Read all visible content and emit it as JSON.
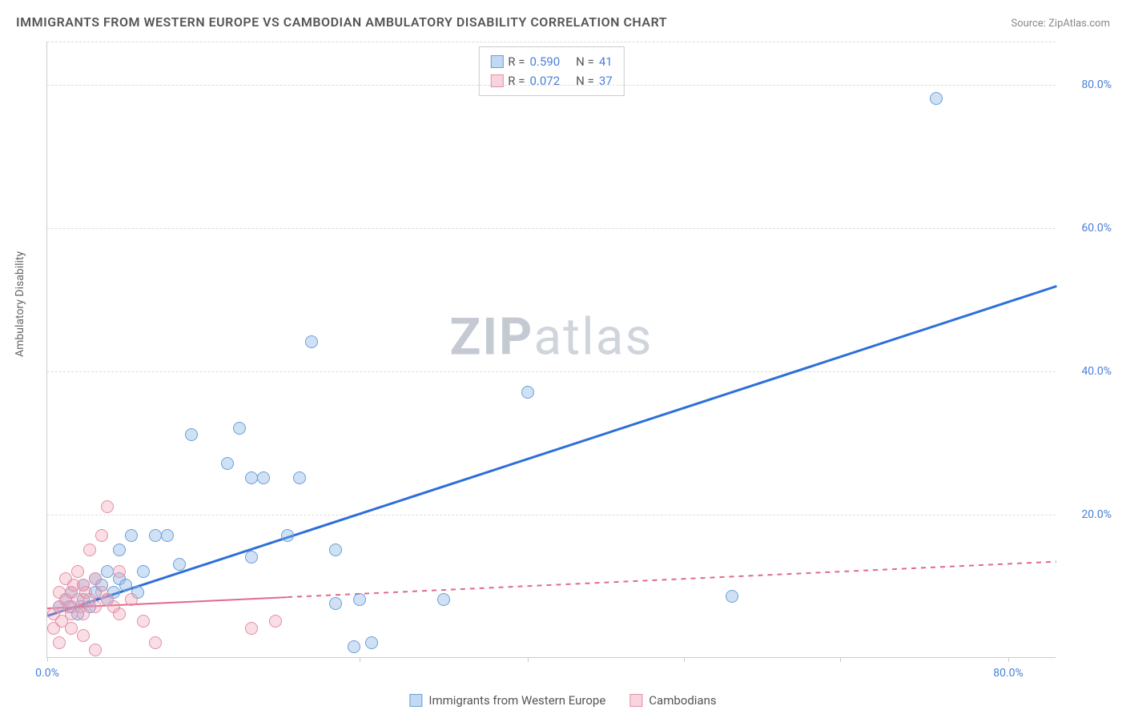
{
  "title": "IMMIGRANTS FROM WESTERN EUROPE VS CAMBODIAN AMBULATORY DISABILITY CORRELATION CHART",
  "source": "Source: ZipAtlas.com",
  "watermark": {
    "bold": "ZIP",
    "light": "atlas"
  },
  "y_axis_label": "Ambulatory Disability",
  "chart": {
    "type": "scatter",
    "xlim": [
      0,
      84
    ],
    "ylim": [
      0,
      86
    ],
    "x_ticks": [
      0,
      26,
      40,
      53,
      66,
      80
    ],
    "x_tick_labels": [
      "0.0%",
      "",
      "",
      "",
      "",
      "80.0%"
    ],
    "y_ticks": [
      20,
      40,
      60,
      80
    ],
    "y_tick_labels": [
      "20.0%",
      "40.0%",
      "60.0%",
      "80.0%"
    ],
    "background_color": "#ffffff",
    "grid_color": "#dddddd",
    "marker_size": 16
  },
  "series": [
    {
      "name": "Immigrants from Western Europe",
      "color_fill": "rgba(120,170,230,0.35)",
      "color_stroke": "#6a9fd6",
      "trend": {
        "x1": 0,
        "y1": 6,
        "x2": 84,
        "y2": 52,
        "color": "#2d6fd8",
        "width": 2.5,
        "dash": false,
        "solid_until_x": 84
      },
      "R": "0.590",
      "N": "41",
      "points": [
        [
          1,
          7
        ],
        [
          1.5,
          8
        ],
        [
          2,
          7
        ],
        [
          2,
          9
        ],
        [
          2.5,
          6
        ],
        [
          3,
          8
        ],
        [
          3,
          10
        ],
        [
          3.5,
          7
        ],
        [
          4,
          9
        ],
        [
          4,
          11
        ],
        [
          4.5,
          10
        ],
        [
          5,
          8
        ],
        [
          5,
          12
        ],
        [
          5.5,
          9
        ],
        [
          6,
          11
        ],
        [
          6,
          15
        ],
        [
          6.5,
          10
        ],
        [
          7,
          17
        ],
        [
          7.5,
          9
        ],
        [
          8,
          12
        ],
        [
          9,
          17
        ],
        [
          10,
          17
        ],
        [
          11,
          13
        ],
        [
          12,
          31
        ],
        [
          15,
          27
        ],
        [
          16,
          32
        ],
        [
          17,
          25
        ],
        [
          17,
          14
        ],
        [
          18,
          25
        ],
        [
          20,
          17
        ],
        [
          21,
          25
        ],
        [
          22,
          44
        ],
        [
          24,
          15
        ],
        [
          24,
          7.5
        ],
        [
          25.5,
          1.5
        ],
        [
          26,
          8
        ],
        [
          27,
          2
        ],
        [
          33,
          8
        ],
        [
          40,
          37
        ],
        [
          57,
          8.5
        ],
        [
          74,
          78
        ]
      ]
    },
    {
      "name": "Cambodians",
      "color_fill": "rgba(240,160,180,0.35)",
      "color_stroke": "#e38fa5",
      "trend": {
        "x1": 0,
        "y1": 7,
        "x2": 84,
        "y2": 13.5,
        "color": "#e06a8c",
        "width": 2,
        "dash": true,
        "solid_until_x": 20
      },
      "R": "0.072",
      "N": "37",
      "points": [
        [
          0.5,
          6
        ],
        [
          0.5,
          4
        ],
        [
          1,
          7
        ],
        [
          1,
          9
        ],
        [
          1,
          2
        ],
        [
          1.2,
          5
        ],
        [
          1.5,
          8
        ],
        [
          1.5,
          11
        ],
        [
          1.8,
          7
        ],
        [
          2,
          9
        ],
        [
          2,
          6
        ],
        [
          2,
          4
        ],
        [
          2.2,
          10
        ],
        [
          2.5,
          8
        ],
        [
          2.5,
          12
        ],
        [
          2.8,
          7
        ],
        [
          3,
          10
        ],
        [
          3,
          6
        ],
        [
          3,
          3
        ],
        [
          3.2,
          9
        ],
        [
          3.5,
          8
        ],
        [
          3.5,
          15
        ],
        [
          4,
          7
        ],
        [
          4,
          11
        ],
        [
          4,
          1
        ],
        [
          4.5,
          9
        ],
        [
          4.5,
          17
        ],
        [
          5,
          8
        ],
        [
          5,
          21
        ],
        [
          5.5,
          7
        ],
        [
          6,
          6
        ],
        [
          6,
          12
        ],
        [
          7,
          8
        ],
        [
          8,
          5
        ],
        [
          9,
          2
        ],
        [
          17,
          4
        ],
        [
          19,
          5
        ]
      ]
    }
  ],
  "legend_top": [
    {
      "swatch": "blue",
      "R": "0.590",
      "N": "41"
    },
    {
      "swatch": "pink",
      "R": "0.072",
      "N": "37"
    }
  ],
  "legend_bottom": [
    {
      "swatch": "blue",
      "label": "Immigrants from Western Europe"
    },
    {
      "swatch": "pink",
      "label": "Cambodians"
    }
  ]
}
